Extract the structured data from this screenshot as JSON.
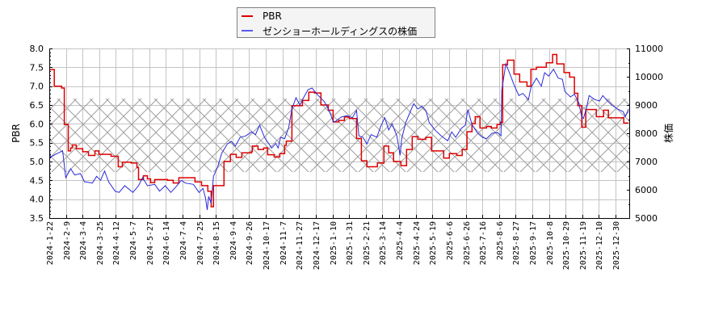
{
  "legend": {
    "items": [
      {
        "label": "PBR",
        "color": "#dd0000"
      },
      {
        "label": "ゼンショーホールディングスの株価",
        "color": "#5a5aee"
      }
    ]
  },
  "chart_data": {
    "type": "line",
    "title": "",
    "xlabel": "",
    "ylabel": "PBR",
    "y2label": "株価",
    "ylim": [
      3.5,
      8.0
    ],
    "y2lim": [
      5000,
      11000
    ],
    "yticks": [
      "3.5",
      "4.0",
      "4.5",
      "5.0",
      "5.5",
      "6.0",
      "6.5",
      "7.0",
      "7.5",
      "8.0"
    ],
    "y2ticks": [
      "5000",
      "6000",
      "7000",
      "8000",
      "9000",
      "10000",
      "11000"
    ],
    "grid": true,
    "legend_position": "top-center",
    "categories": [
      "2024-1-22",
      "2024-2-9",
      "2024-3-4",
      "2024-3-25",
      "2024-4-12",
      "2024-5-7",
      "2024-5-27",
      "2024-6-14",
      "2024-7-4",
      "2024-7-25",
      "2024-8-15",
      "2024-9-4",
      "2024-9-26",
      "2024-10-17",
      "2024-11-7",
      "2024-11-27",
      "2024-12-17",
      "2025-1-10",
      "2025-1-31",
      "2025-2-21",
      "2025-3-14",
      "2025-4-4",
      "2025-4-24",
      "2025-5-19",
      "2025-6-6",
      "2025-6-26",
      "2025-7-16",
      "2025-8-6",
      "2025-8-27",
      "2025-9-17",
      "2025-10-8",
      "2025-10-29",
      "2025-11-19",
      "2025-12-10",
      "2025-12-30"
    ],
    "x_end": 34.78,
    "band": {
      "axis": "left",
      "ymin": 4.72,
      "ymax": 6.67,
      "pattern": "crosshatch",
      "color": "#a0a0a0"
    },
    "series": [
      {
        "name": "PBR",
        "axis": "left",
        "step": true,
        "color": "#dd0000",
        "points": [
          [
            0,
            7.44
          ],
          [
            0.3,
            7.0
          ],
          [
            0.74,
            6.95
          ],
          [
            0.9,
            5.98
          ],
          [
            1.14,
            5.28
          ],
          [
            1.28,
            5.36
          ],
          [
            1.38,
            5.44
          ],
          [
            1.62,
            5.34
          ],
          [
            2.01,
            5.26
          ],
          [
            2.35,
            5.16
          ],
          [
            2.74,
            5.28
          ],
          [
            2.98,
            5.19
          ],
          [
            3.71,
            5.14
          ],
          [
            4.14,
            4.86
          ],
          [
            4.39,
            4.98
          ],
          [
            4.92,
            4.96
          ],
          [
            5.26,
            4.84
          ],
          [
            5.36,
            4.52
          ],
          [
            5.65,
            4.62
          ],
          [
            5.89,
            4.54
          ],
          [
            6.08,
            4.44
          ],
          [
            6.33,
            4.52
          ],
          [
            7.1,
            4.5
          ],
          [
            7.44,
            4.43
          ],
          [
            7.78,
            4.57
          ],
          [
            8.75,
            4.46
          ],
          [
            9.14,
            4.36
          ],
          [
            9.52,
            4.21
          ],
          [
            9.72,
            3.8
          ],
          [
            9.86,
            4.36
          ],
          [
            10.49,
            5.0
          ],
          [
            10.88,
            5.19
          ],
          [
            11.22,
            5.11
          ],
          [
            11.56,
            5.23
          ],
          [
            12.14,
            5.26
          ],
          [
            12.19,
            5.41
          ],
          [
            12.53,
            5.32
          ],
          [
            12.87,
            5.36
          ],
          [
            13.11,
            5.18
          ],
          [
            13.5,
            5.12
          ],
          [
            13.84,
            5.21
          ],
          [
            14.13,
            5.43
          ],
          [
            14.23,
            5.54
          ],
          [
            14.57,
            6.48
          ],
          [
            14.86,
            6.48
          ],
          [
            15.2,
            6.62
          ],
          [
            15.58,
            6.84
          ],
          [
            15.92,
            6.82
          ],
          [
            16.31,
            6.5
          ],
          [
            16.75,
            6.36
          ],
          [
            17.04,
            6.05
          ],
          [
            17.38,
            6.09
          ],
          [
            17.72,
            6.18
          ],
          [
            18.01,
            6.14
          ],
          [
            18.45,
            5.61
          ],
          [
            18.74,
            5.02
          ],
          [
            19.07,
            4.86
          ],
          [
            19.7,
            4.96
          ],
          [
            20.09,
            5.41
          ],
          [
            20.38,
            5.23
          ],
          [
            20.67,
            5.0
          ],
          [
            21.11,
            4.89
          ],
          [
            21.45,
            5.32
          ],
          [
            21.79,
            5.66
          ],
          [
            22.13,
            5.59
          ],
          [
            22.61,
            5.64
          ],
          [
            22.95,
            5.28
          ],
          [
            23.68,
            5.09
          ],
          [
            24.02,
            5.21
          ],
          [
            24.46,
            5.16
          ],
          [
            24.79,
            5.32
          ],
          [
            25.08,
            5.79
          ],
          [
            25.38,
            6.0
          ],
          [
            25.57,
            6.19
          ],
          [
            25.86,
            5.89
          ],
          [
            26.25,
            5.93
          ],
          [
            26.54,
            5.89
          ],
          [
            26.88,
            5.98
          ],
          [
            27.07,
            6.04
          ],
          [
            27.22,
            7.57
          ],
          [
            27.51,
            7.69
          ],
          [
            27.9,
            7.32
          ],
          [
            28.24,
            7.11
          ],
          [
            28.68,
            7.0
          ],
          [
            28.92,
            7.45
          ],
          [
            29.25,
            7.5
          ],
          [
            29.84,
            7.62
          ],
          [
            30.22,
            7.84
          ],
          [
            30.47,
            7.59
          ],
          [
            30.9,
            7.36
          ],
          [
            31.24,
            7.24
          ],
          [
            31.53,
            6.81
          ],
          [
            31.73,
            6.48
          ],
          [
            31.97,
            5.91
          ],
          [
            32.21,
            6.38
          ],
          [
            32.84,
            6.19
          ],
          [
            33.28,
            6.36
          ],
          [
            33.57,
            6.16
          ],
          [
            34.49,
            6.02
          ],
          [
            34.78,
            6.02
          ]
        ]
      },
      {
        "name": "ゼンショーホールディングスの株価",
        "axis": "right",
        "step": false,
        "color": "#2a2ad8",
        "points": [
          [
            0,
            7543
          ],
          [
            0.07,
            7143
          ],
          [
            0.32,
            7238
          ],
          [
            0.65,
            7333
          ],
          [
            0.8,
            7381
          ],
          [
            0.99,
            6429
          ],
          [
            1.28,
            6743
          ],
          [
            1.53,
            6524
          ],
          [
            1.87,
            6571
          ],
          [
            2.11,
            6286
          ],
          [
            2.59,
            6238
          ],
          [
            2.84,
            6476
          ],
          [
            3.08,
            6333
          ],
          [
            3.32,
            6667
          ],
          [
            3.56,
            6286
          ],
          [
            3.95,
            5952
          ],
          [
            4.19,
            5905
          ],
          [
            4.53,
            6143
          ],
          [
            5.02,
            5905
          ],
          [
            5.36,
            6143
          ],
          [
            5.6,
            6429
          ],
          [
            5.89,
            6143
          ],
          [
            6.33,
            6190
          ],
          [
            6.62,
            5952
          ],
          [
            6.96,
            6143
          ],
          [
            7.3,
            5905
          ],
          [
            7.59,
            6095
          ],
          [
            7.93,
            6333
          ],
          [
            8.17,
            6238
          ],
          [
            8.65,
            6190
          ],
          [
            8.99,
            5905
          ],
          [
            9.23,
            6048
          ],
          [
            9.38,
            5714
          ],
          [
            9.48,
            5286
          ],
          [
            9.57,
            5762
          ],
          [
            9.72,
            5524
          ],
          [
            9.86,
            6476
          ],
          [
            10.11,
            6810
          ],
          [
            10.35,
            7286
          ],
          [
            10.69,
            7619
          ],
          [
            10.93,
            7714
          ],
          [
            11.17,
            7543
          ],
          [
            11.46,
            7857
          ],
          [
            11.8,
            7905
          ],
          [
            12.14,
            8048
          ],
          [
            12.38,
            7952
          ],
          [
            12.63,
            8286
          ],
          [
            12.92,
            7857
          ],
          [
            13.35,
            7476
          ],
          [
            13.6,
            7638
          ],
          [
            13.74,
            7476
          ],
          [
            13.89,
            7857
          ],
          [
            14.13,
            7810
          ],
          [
            14.37,
            8190
          ],
          [
            14.57,
            8857
          ],
          [
            14.81,
            9257
          ],
          [
            15.05,
            9000
          ],
          [
            15.29,
            9286
          ],
          [
            15.54,
            9543
          ],
          [
            15.78,
            9600
          ],
          [
            16.07,
            9381
          ],
          [
            16.51,
            9124
          ],
          [
            16.8,
            8810
          ],
          [
            17.04,
            8429
          ],
          [
            17.14,
            8400
          ],
          [
            17.52,
            8571
          ],
          [
            17.86,
            8619
          ],
          [
            18.2,
            8552
          ],
          [
            18.45,
            8810
          ],
          [
            18.59,
            7905
          ],
          [
            18.83,
            7857
          ],
          [
            19.07,
            7619
          ],
          [
            19.32,
            7952
          ],
          [
            19.66,
            7857
          ],
          [
            19.9,
            8238
          ],
          [
            20.14,
            8552
          ],
          [
            20.38,
            8114
          ],
          [
            20.58,
            8333
          ],
          [
            20.87,
            7905
          ],
          [
            21.06,
            7219
          ],
          [
            21.16,
            7810
          ],
          [
            21.4,
            8381
          ],
          [
            21.64,
            8714
          ],
          [
            21.88,
            9048
          ],
          [
            22.13,
            8857
          ],
          [
            22.37,
            8952
          ],
          [
            22.61,
            8810
          ],
          [
            22.81,
            8381
          ],
          [
            23.19,
            8095
          ],
          [
            23.53,
            7905
          ],
          [
            23.92,
            7733
          ],
          [
            24.16,
            8048
          ],
          [
            24.4,
            7857
          ],
          [
            24.74,
            8171
          ],
          [
            24.98,
            8286
          ],
          [
            25.13,
            8838
          ],
          [
            25.38,
            8305
          ],
          [
            25.72,
            8000
          ],
          [
            26.01,
            7857
          ],
          [
            26.25,
            7810
          ],
          [
            26.59,
            8000
          ],
          [
            26.93,
            8019
          ],
          [
            27.12,
            7905
          ],
          [
            27.17,
            9524
          ],
          [
            27.41,
            10457
          ],
          [
            27.66,
            10095
          ],
          [
            27.9,
            9714
          ],
          [
            28.19,
            9333
          ],
          [
            28.43,
            9410
          ],
          [
            28.77,
            9190
          ],
          [
            28.92,
            9619
          ],
          [
            29.25,
            9952
          ],
          [
            29.54,
            9667
          ],
          [
            29.74,
            10143
          ],
          [
            29.98,
            10019
          ],
          [
            30.27,
            10267
          ],
          [
            30.56,
            9952
          ],
          [
            30.81,
            9905
          ],
          [
            30.95,
            9476
          ],
          [
            31.29,
            9286
          ],
          [
            31.53,
            9381
          ],
          [
            31.78,
            9095
          ],
          [
            31.97,
            8571
          ],
          [
            32.07,
            8524
          ],
          [
            32.26,
            8905
          ],
          [
            32.41,
            9333
          ],
          [
            32.75,
            9190
          ],
          [
            33.04,
            9143
          ],
          [
            33.23,
            9333
          ],
          [
            33.48,
            9162
          ],
          [
            33.77,
            9000
          ],
          [
            34.11,
            8857
          ],
          [
            34.45,
            8762
          ],
          [
            34.59,
            8590
          ],
          [
            34.78,
            8857
          ]
        ]
      }
    ]
  }
}
